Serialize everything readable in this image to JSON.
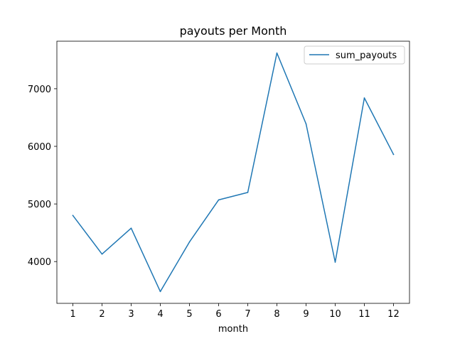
{
  "chart_data": {
    "type": "line",
    "title": "payouts per Month",
    "xlabel": "month",
    "ylabel": "",
    "x": [
      1,
      2,
      3,
      4,
      5,
      6,
      7,
      8,
      9,
      10,
      11,
      12
    ],
    "series": [
      {
        "name": "sum_payouts",
        "color": "#1f77b4",
        "values": [
          4800,
          4130,
          4580,
          3480,
          4340,
          5070,
          5200,
          7620,
          6390,
          3990,
          6840,
          5860
        ]
      }
    ],
    "xlim": [
      0.45,
      12.55
    ],
    "ylim": [
      3275,
      7825
    ],
    "x_ticks": [
      "1",
      "2",
      "3",
      "4",
      "5",
      "6",
      "7",
      "8",
      "9",
      "10",
      "11",
      "12"
    ],
    "y_ticks": [
      "4000",
      "5000",
      "6000",
      "7000"
    ],
    "legend_position": "top-right",
    "grid": false
  }
}
